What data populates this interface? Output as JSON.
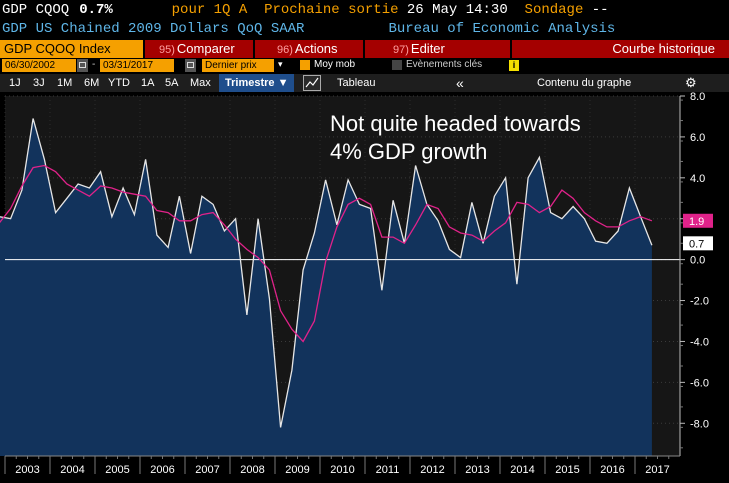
{
  "header": {
    "ticker": "GDP CQOQ",
    "value": "0.7%",
    "period": "pour 1Q A",
    "next_release_label": "Prochaine sortie",
    "next_release_date": "26 May 14:30",
    "survey_label": "Sondage",
    "survey_value": "--",
    "series_name": "GDP US Chained 2009 Dollars QoQ SAAR",
    "source": "Bureau of Economic Analysis"
  },
  "menu": {
    "ticker_label": "GDP CQOQ Index",
    "compare_num": "95)",
    "compare_label": "Comparer",
    "actions_num": "96)",
    "actions_label": "Actions",
    "edit_num": "97)",
    "edit_label": "Editer",
    "view_title": "Courbe historique"
  },
  "dates": {
    "start": "06/30/2002",
    "end": "03/31/2017",
    "price_select": "Dernier prix",
    "moy_mob": "Moy mob",
    "events": "Evènements clés"
  },
  "range": {
    "buttons": [
      "1J",
      "3J",
      "1M",
      "6M",
      "YTD",
      "1A",
      "5A",
      "Max"
    ],
    "active": "Trimestre ▼",
    "table": "Tableau",
    "chart_content": "Contenu du graphe"
  },
  "icons": {
    "collapse": "«",
    "settings": "⚙",
    "line_chart": "line-chart-icon",
    "info": "i"
  },
  "colors": {
    "orange": "#f5a000",
    "menu_red": "#a40000",
    "series_fill": "#12335c",
    "series_line": "#e6e6e6",
    "ma_line": "#e0228a"
  },
  "annotation": {
    "line1": "Not quite headed towards",
    "line2": "4% GDP growth"
  },
  "chart_data": {
    "type": "area",
    "title": "Not quite headed towards 4% GDP growth",
    "xlabel": "",
    "ylabel": "",
    "ylim": [
      -9.6,
      8.0
    ],
    "yticks": [
      -8.0,
      -6.0,
      -4.0,
      -2.0,
      0.0,
      2.0,
      4.0,
      6.0,
      8.0
    ],
    "ytick_labels": [
      "-8.0",
      "-6.0",
      "-4.0",
      "-2.0",
      "0.0",
      "2.0",
      "4.0",
      "6.0",
      "8.0"
    ],
    "year_labels": [
      "2003",
      "2004",
      "2005",
      "2006",
      "2007",
      "2008",
      "2009",
      "2010",
      "2011",
      "2012",
      "2013",
      "2014",
      "2015",
      "2016",
      "2017"
    ],
    "series": [
      {
        "name": "GDP CQOQ",
        "last_value_label": "0.7",
        "x_start": "2002Q2",
        "values": [
          0.4,
          2.1,
          2.0,
          3.4,
          6.9,
          4.9,
          2.3,
          3.0,
          3.7,
          3.5,
          4.3,
          2.1,
          3.5,
          2.2,
          4.9,
          1.2,
          0.6,
          3.1,
          0.3,
          3.1,
          2.7,
          1.4,
          2.0,
          -2.7,
          2.0,
          -1.9,
          -8.2,
          -5.4,
          -0.5,
          1.3,
          3.9,
          1.7,
          3.9,
          2.7,
          2.5,
          -1.5,
          2.9,
          0.8,
          4.6,
          2.7,
          1.9,
          0.5,
          0.1,
          2.8,
          0.8,
          3.1,
          4.0,
          -1.2,
          4.0,
          5.0,
          2.3,
          2.0,
          2.6,
          2.0,
          0.9,
          0.8,
          1.4,
          3.5,
          2.1,
          0.7
        ]
      },
      {
        "name": "Moy mob",
        "x_start": "2002Q2",
        "values": [
          2.1,
          1.8,
          2.5,
          3.6,
          4.5,
          4.6,
          4.3,
          3.7,
          3.4,
          3.1,
          3.6,
          3.5,
          3.3,
          3.2,
          3.1,
          2.4,
          2.3,
          1.9,
          1.9,
          2.2,
          2.3,
          1.7,
          1.0,
          0.5,
          0.1,
          -0.5,
          -2.5,
          -3.4,
          -4.0,
          -3.0,
          -0.1,
          1.6,
          2.7,
          3.0,
          2.7,
          1.1,
          1.1,
          0.8,
          1.7,
          2.7,
          2.5,
          1.6,
          1.3,
          1.2,
          0.9,
          1.4,
          1.8,
          2.8,
          2.7,
          2.3,
          2.6,
          3.4,
          3.0,
          2.3,
          1.9,
          1.6,
          1.6,
          1.9,
          2.1,
          1.9
        ]
      }
    ],
    "labels_right": [
      "1.9",
      "0.7"
    ]
  }
}
